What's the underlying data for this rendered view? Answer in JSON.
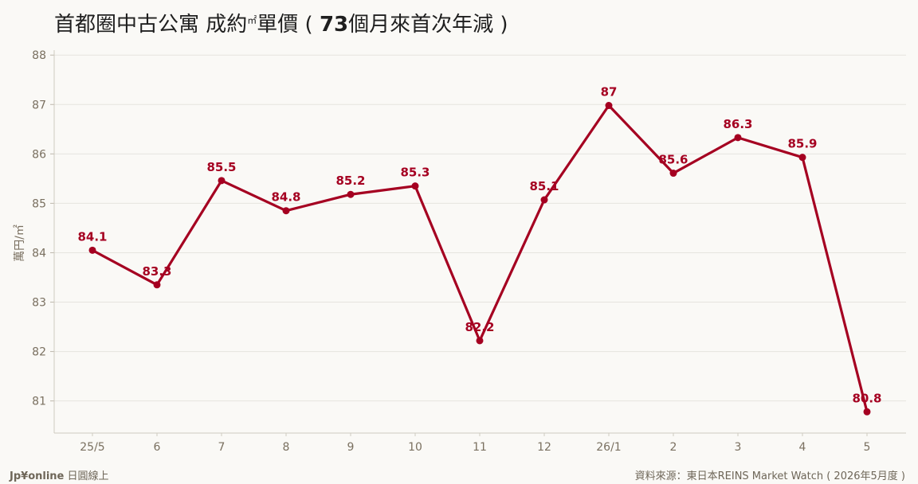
{
  "title": {
    "part1": "首都圈中古公寓 成約",
    "unit": "㎡",
    "part2": "單價 ( ",
    "number": "73",
    "part3": "個月來首次年減 )"
  },
  "footer": {
    "brand_bold": "Jp¥online",
    "brand_rest": " 日圓線上",
    "source": "資料來源：東日本REINS Market Watch ( 2026年5月度 )"
  },
  "colors": {
    "line": "#A50021",
    "grid": "#E6E4DF",
    "axis_text": "#7A7060",
    "background": "#FAF9F6"
  },
  "chart_data": {
    "type": "line",
    "title": "首都圈中古公寓 成約㎡單價 ( 73個月來首次年減 )",
    "xlabel": "",
    "ylabel": "萬円/㎡",
    "categories": [
      "25/5",
      "6",
      "7",
      "8",
      "9",
      "10",
      "11",
      "12",
      "26/1",
      "2",
      "3",
      "4",
      "5"
    ],
    "series": [
      {
        "values": [
          84.05,
          83.35,
          85.46,
          84.85,
          85.18,
          85.35,
          82.22,
          85.07,
          86.98,
          85.61,
          86.33,
          85.93,
          80.78
        ],
        "labels": [
          "84.1",
          "83.3",
          "85.5",
          "84.8",
          "85.2",
          "85.3",
          "82.2",
          "85.1",
          "87",
          "85.6",
          "86.3",
          "85.9",
          "80.8"
        ]
      }
    ],
    "yticks": [
      81,
      82,
      83,
      84,
      85,
      86,
      87,
      88
    ],
    "ylim": [
      80.35,
      88.1
    ],
    "grid": true,
    "legend": "none"
  }
}
